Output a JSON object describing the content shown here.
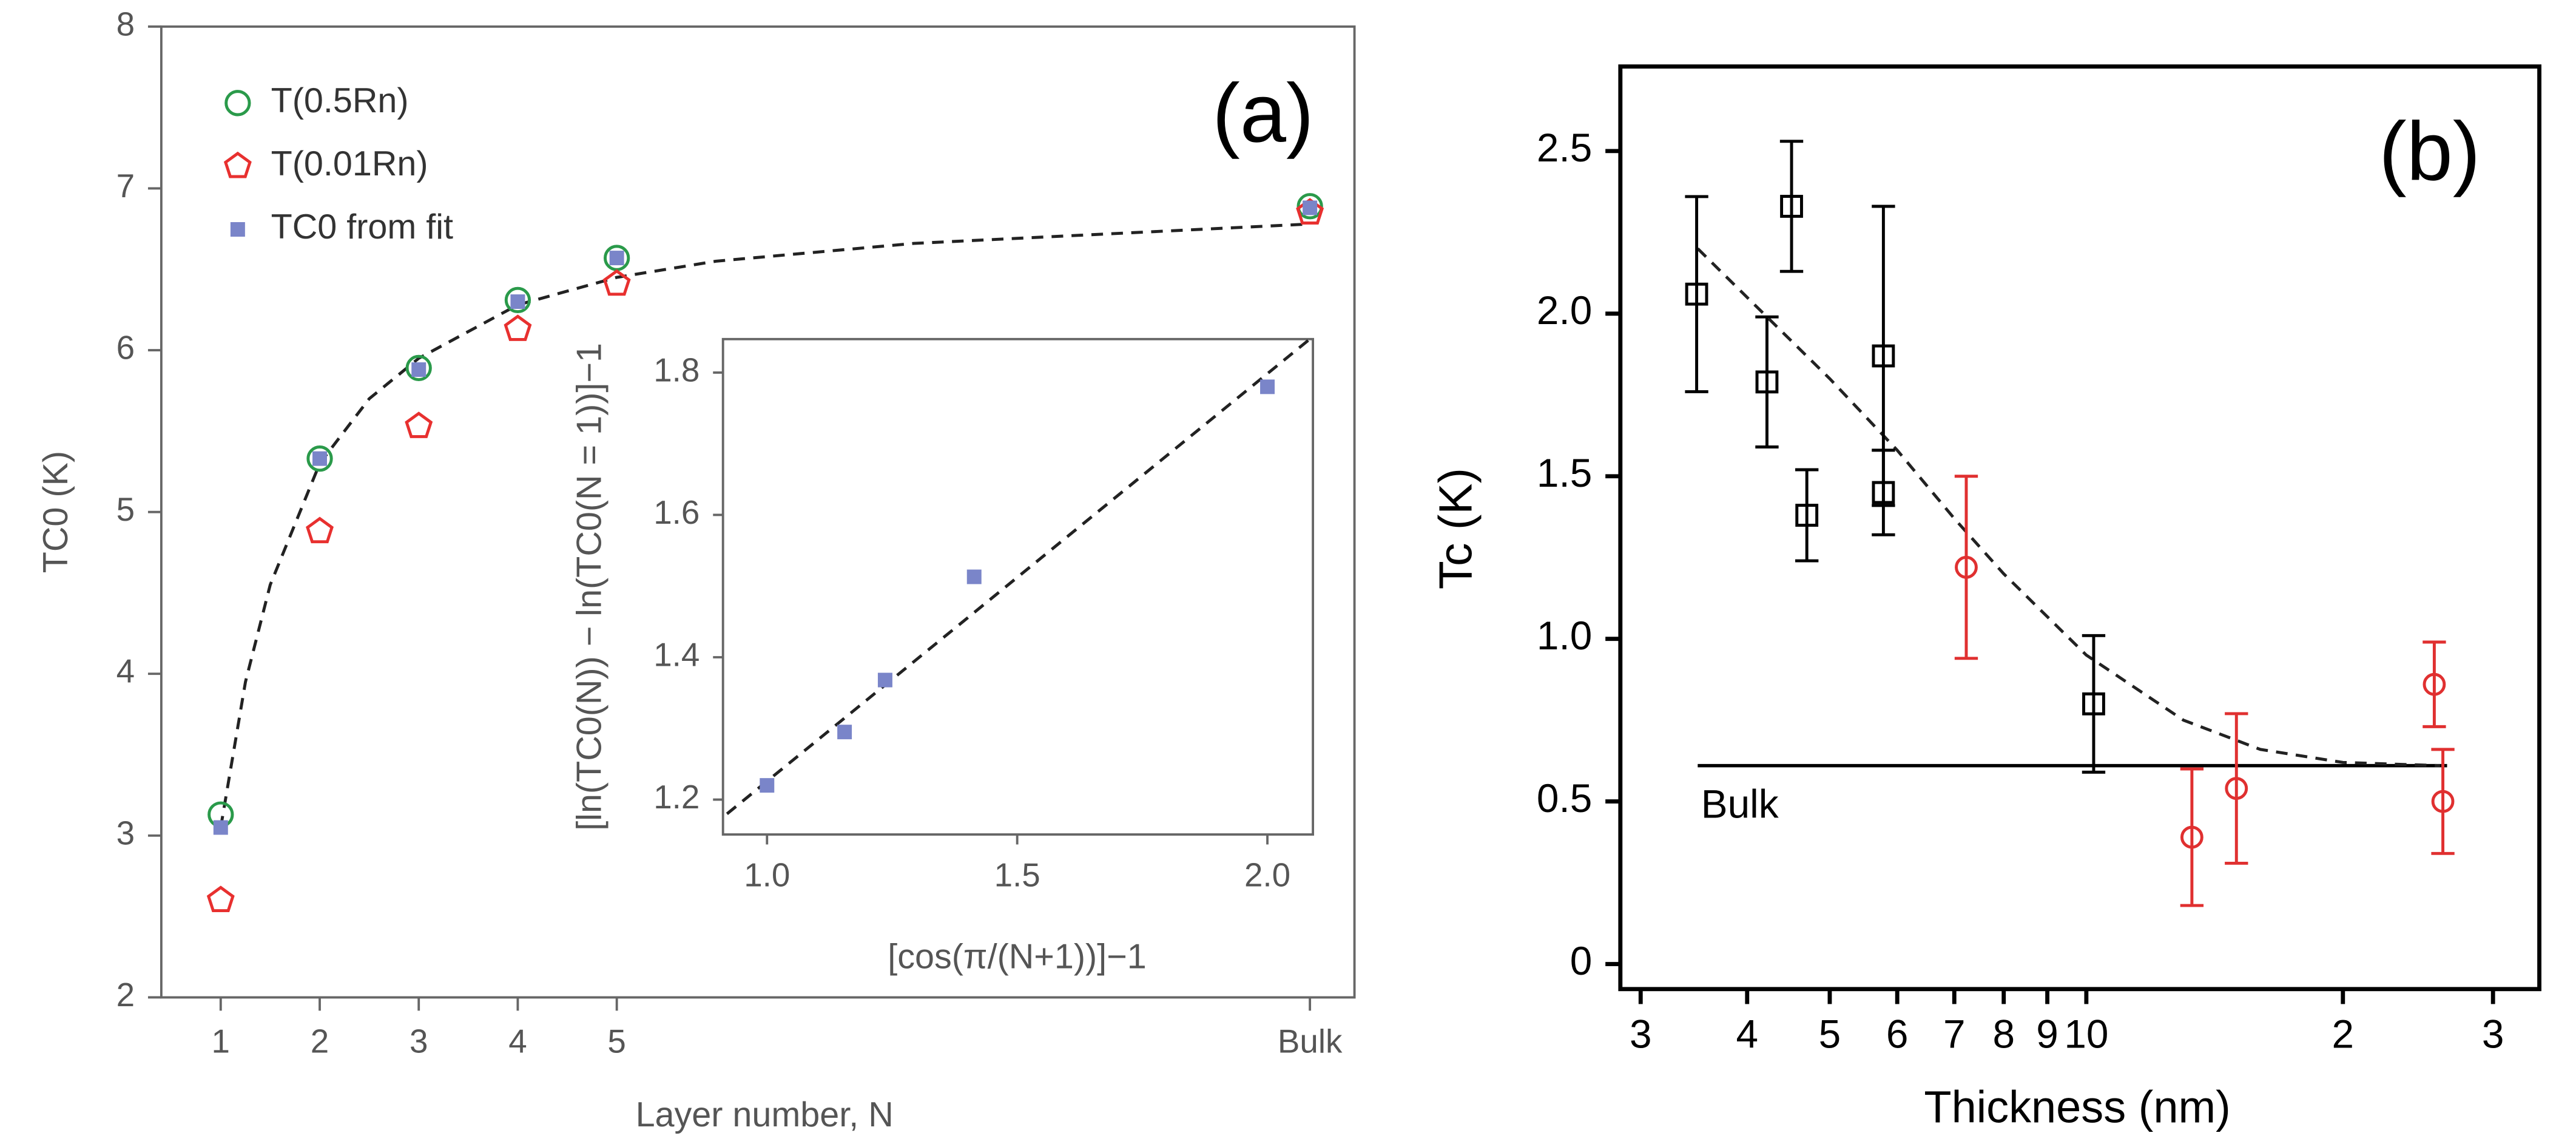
{
  "chart_data": [
    {
      "type": "scatter",
      "panel_label": "(a)",
      "x_label": "Layer number, N",
      "y_label": "TC0 (K)",
      "x": [
        1,
        2,
        3,
        4,
        5,
        12
      ],
      "xlim": [
        0.4,
        12.45
      ],
      "xticks": [
        1,
        2,
        3,
        4,
        5,
        {
          "value": 12,
          "label": "Bulk"
        }
      ],
      "ylim": [
        2,
        8
      ],
      "yticks": [
        2,
        3,
        4,
        5,
        6,
        7,
        8
      ],
      "legend": "upper left",
      "series": [
        {
          "name": "T(0.5Rn)",
          "color": "#2a9a4a",
          "marker": "circle",
          "values": [
            3.13,
            5.33,
            5.89,
            6.31,
            6.57,
            6.89
          ]
        },
        {
          "name": "T(0.01Rn)",
          "color": "#e8302f",
          "marker": "pentagon",
          "values": [
            2.6,
            4.88,
            5.53,
            6.13,
            6.41,
            6.85
          ]
        },
        {
          "name": "TC0 from fit",
          "color": "#7a85c9",
          "marker": "square",
          "values": [
            3.05,
            5.33,
            5.88,
            6.3,
            6.57,
            6.88
          ]
        }
      ],
      "fit": {
        "x": [
          1,
          1.25,
          1.5,
          2,
          2.5,
          3,
          4,
          5,
          6,
          8,
          10,
          12
        ],
        "values": [
          3.05,
          3.95,
          4.55,
          5.3,
          5.7,
          5.95,
          6.28,
          6.45,
          6.55,
          6.66,
          6.72,
          6.78
        ]
      }
    },
    {
      "type": "scatter",
      "x_label": "[cos(π/(N+1))]−1",
      "y_label": "[ln(TC0(N)) − ln(TC0(N = 1))]−1",
      "xlim": [
        0.912,
        2.091
      ],
      "xticks": [
        {
          "value": 1,
          "label": "1.0"
        },
        1.5,
        {
          "value": 2,
          "label": "2.0"
        }
      ],
      "ylim": [
        1.151,
        1.847
      ],
      "yticks": [
        1.2,
        1.4,
        1.6,
        1.8
      ],
      "series": [
        {
          "color": "#7a85c9",
          "marker": "square",
          "x": [
            1.0,
            1.155,
            1.236,
            1.414,
            2.0
          ],
          "values": [
            1.22,
            1.295,
            1.368,
            1.513,
            1.78
          ]
        }
      ],
      "fit": {
        "x": [
          0.92,
          2.09
        ],
        "values": [
          1.18,
          1.85
        ]
      }
    },
    {
      "type": "scatter",
      "panel_label": "(b)",
      "x_label": "Thickness (nm)",
      "y_label": "Tc (K)",
      "xscale": "log",
      "xlim": [
        2.84,
        34
      ],
      "xticks": [
        3,
        4,
        5,
        6,
        7,
        8,
        9,
        10,
        {
          "value": 20,
          "label": "2"
        },
        {
          "value": 30,
          "label": "3"
        }
      ],
      "ylim": [
        -0.077,
        2.76
      ],
      "yticks": [
        0,
        0.5,
        {
          "value": 1,
          "label": "1.0"
        },
        1.5,
        {
          "value": 2,
          "label": "2.0"
        },
        2.5
      ],
      "series": [
        {
          "color": "#000000",
          "marker": "open-square",
          "x": [
            3.49,
            4.22,
            4.51,
            4.7,
            5.78,
            5.78,
            10.2
          ],
          "values": [
            2.06,
            1.79,
            2.33,
            1.38,
            1.87,
            1.45,
            0.8
          ],
          "error": [
            0.3,
            0.2,
            0.2,
            0.14,
            0.46,
            0.13,
            0.21
          ]
        },
        {
          "color": "#e03030",
          "marker": "circle",
          "x": [
            7.23,
            13.3,
            15.0,
            25.6,
            26.2
          ],
          "values": [
            1.22,
            0.39,
            0.54,
            0.86,
            0.5
          ],
          "error": [
            0.28,
            0.21,
            0.23,
            0.13,
            0.16
          ]
        }
      ],
      "fit": {
        "x": [
          3.5,
          4,
          5,
          6,
          7,
          8,
          10,
          13,
          16,
          20,
          26
        ],
        "values": [
          2.2,
          2.05,
          1.8,
          1.58,
          1.37,
          1.2,
          0.95,
          0.75,
          0.66,
          0.62,
          0.61
        ]
      },
      "bulk": {
        "label": "Bulk",
        "value": 0.61,
        "x": [
          3.5,
          26.5
        ]
      }
    }
  ]
}
